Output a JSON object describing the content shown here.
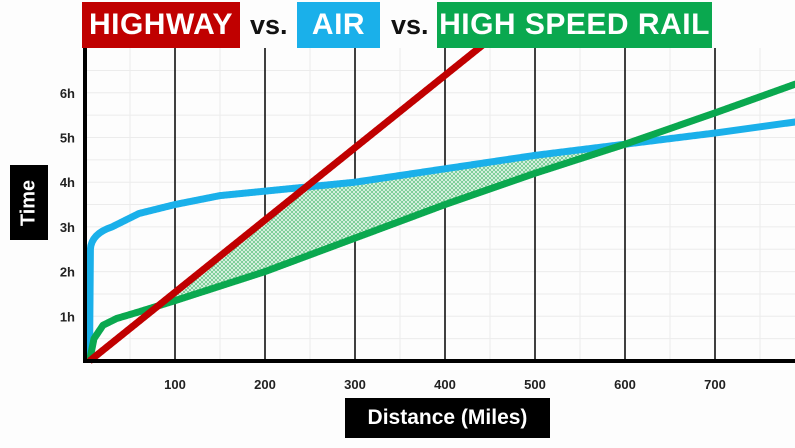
{
  "chart_data": {
    "type": "line",
    "title_parts": [
      "HIGHWAY",
      "vs.",
      "AIR",
      "vs.",
      "HIGH SPEED RAIL"
    ],
    "xlabel": "Distance (Miles)",
    "ylabel": "Time",
    "xlim": [
      0,
      790
    ],
    "ylim": [
      0,
      7
    ],
    "x_ticks": [
      100,
      200,
      300,
      400,
      500,
      600,
      700
    ],
    "x_tick_labels": [
      "100",
      "200",
      "300",
      "400",
      "500",
      "600",
      "700"
    ],
    "y_ticks": [
      1,
      2,
      3,
      4,
      5,
      6
    ],
    "y_tick_labels": [
      "1h",
      "2h",
      "3h",
      "4h",
      "5h",
      "6h"
    ],
    "grid": true,
    "series": [
      {
        "name": "HIGHWAY",
        "color": "#c00000",
        "x": [
          5,
          450
        ],
        "y": [
          0,
          7.2
        ]
      },
      {
        "name": "AIR",
        "color": "#1ab0ea",
        "x": [
          5,
          6,
          8,
          15,
          30,
          60,
          100,
          150,
          200,
          300,
          400,
          500,
          600,
          700,
          790
        ],
        "y": [
          0,
          1.5,
          2.5,
          2.75,
          3.0,
          3.3,
          3.5,
          3.7,
          3.8,
          4.0,
          4.3,
          4.6,
          4.85,
          5.1,
          5.35
        ]
      },
      {
        "name": "HIGH SPEED RAIL",
        "color": "#0aa84f",
        "x": [
          5,
          10,
          20,
          35,
          60,
          100,
          200,
          300,
          400,
          500,
          600,
          700,
          790
        ],
        "y": [
          0,
          0.5,
          0.8,
          0.95,
          1.1,
          1.35,
          2.0,
          2.75,
          3.5,
          4.2,
          4.85,
          5.55,
          6.2
        ]
      }
    ],
    "annotations": [
      "shaded region where rail is faster than both highway and air"
    ]
  }
}
